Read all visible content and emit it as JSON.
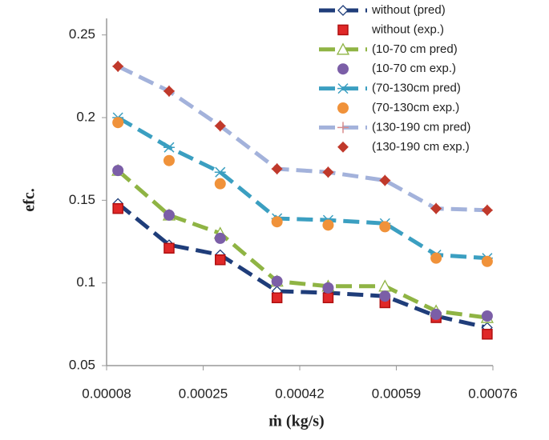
{
  "chart_data": {
    "type": "line",
    "xlabel": "ṁ (kg/s)",
    "ylabel": "efc.",
    "x": [
      0.0001,
      0.00019,
      0.00028,
      0.00038,
      0.00047,
      0.00057,
      0.00066,
      0.00075
    ],
    "xlim": [
      8e-05,
      0.00076
    ],
    "xticks": [
      8e-05,
      0.00025,
      0.00042,
      0.00059,
      0.00076
    ],
    "ylim": [
      0.05,
      0.26
    ],
    "yticks": [
      0.05,
      0.1,
      0.15,
      0.2,
      0.25
    ],
    "grid": false,
    "legend": "top-right",
    "series": [
      {
        "name": "without (pred)",
        "color": "#1f3d7a",
        "marker": "diamond",
        "line": true,
        "values": [
          0.148,
          0.123,
          0.117,
          0.095,
          0.094,
          0.092,
          0.08,
          0.073
        ]
      },
      {
        "name": "without  (exp.)",
        "color": "#e02828",
        "marker": "square",
        "line": false,
        "values": [
          0.145,
          0.121,
          0.114,
          0.091,
          0.091,
          0.088,
          0.079,
          0.069
        ]
      },
      {
        "name": "(10-70 cm pred)",
        "color": "#8fb444",
        "marker": "triangle",
        "line": true,
        "values": [
          0.168,
          0.141,
          0.13,
          0.101,
          0.098,
          0.098,
          0.083,
          0.079
        ]
      },
      {
        "name": "(10-70 cm exp.)",
        "color": "#7b5ea7",
        "marker": "circle",
        "line": false,
        "values": [
          0.168,
          0.141,
          0.127,
          0.101,
          0.097,
          0.092,
          0.081,
          0.08
        ]
      },
      {
        "name": "(70-130cm pred)",
        "color": "#3b9fc1",
        "marker": "asterisk",
        "line": true,
        "values": [
          0.2,
          0.182,
          0.167,
          0.139,
          0.138,
          0.136,
          0.117,
          0.115
        ]
      },
      {
        "name": "(70-130cm exp.)",
        "color": "#f0923a",
        "marker": "circle",
        "line": false,
        "values": [
          0.197,
          0.174,
          0.16,
          0.137,
          0.135,
          0.134,
          0.115,
          0.113
        ]
      },
      {
        "name": "(130-190 cm pred)",
        "color": "#a3b2db",
        "marker_color": "#d98c8c",
        "marker": "plus",
        "line": true,
        "values": [
          0.231,
          0.216,
          0.195,
          0.169,
          0.167,
          0.162,
          0.145,
          0.144
        ]
      },
      {
        "name": "(130-190 cm exp.)",
        "color": "#c0392b",
        "marker": "diamond",
        "line": false,
        "values": [
          0.231,
          0.216,
          0.195,
          0.169,
          0.167,
          0.162,
          0.145,
          0.144
        ]
      }
    ]
  }
}
